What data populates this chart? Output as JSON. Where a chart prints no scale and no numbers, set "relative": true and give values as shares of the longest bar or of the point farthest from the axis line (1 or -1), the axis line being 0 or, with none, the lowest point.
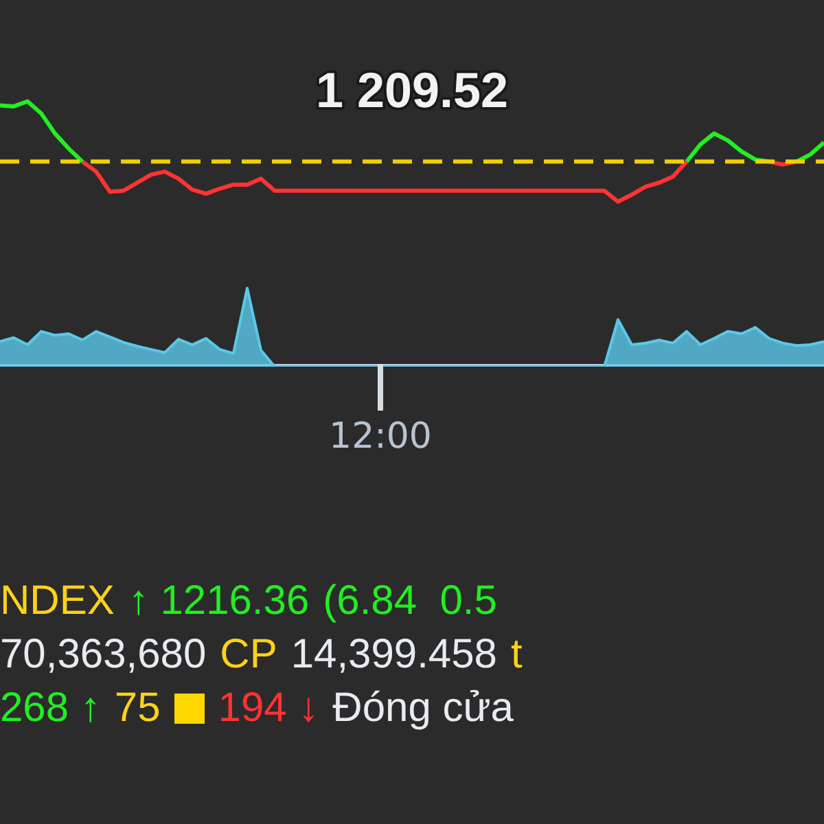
{
  "chart_data": [
    {
      "type": "line",
      "relative": true,
      "tick_labels": false,
      "grid": false,
      "legend": false,
      "marker": "none",
      "categories": [
        null,
        null,
        null,
        null,
        null,
        null,
        null,
        null,
        null,
        null,
        null,
        null,
        null,
        null,
        null,
        null,
        null,
        null,
        null,
        null,
        null,
        null,
        null,
        null,
        null,
        null,
        null,
        null,
        null,
        null,
        null,
        null,
        null,
        null,
        null,
        null,
        null,
        null,
        null,
        null,
        null,
        null,
        null,
        null,
        null,
        null,
        null,
        null,
        null,
        null,
        null,
        null,
        null,
        null,
        null,
        null,
        null,
        null,
        null,
        null,
        null
      ],
      "ref_lines": [
        {
          "axis": "y",
          "value": 0.4,
          "color": "#f0d000",
          "line_style": "dashed"
        }
      ],
      "annotations": [
        "1 209.52"
      ],
      "series": [
        {
          "color": "#22ee22",
          "values": [
            0.96,
            0.95,
            1,
            0.88,
            0.68,
            0.53,
            0.4,
            null,
            null,
            null,
            null,
            null,
            null,
            null,
            null,
            null,
            null,
            null,
            null,
            null,
            null,
            null,
            null,
            null,
            null,
            null,
            null,
            null,
            null,
            null,
            null,
            null,
            null,
            null,
            null,
            null,
            null,
            null,
            null,
            null,
            null,
            null,
            null,
            null,
            null,
            null,
            null,
            null,
            null,
            null,
            null,
            null,
            null,
            null,
            null,
            null,
            null,
            null,
            null,
            null,
            null
          ]
        },
        {
          "color": "#ff3333",
          "values": [
            null,
            null,
            null,
            null,
            null,
            null,
            0.4,
            0.3,
            0.1,
            0.11,
            0.19,
            0.27,
            0.3,
            0.23,
            0.12,
            0.08,
            0.13,
            0.17,
            0.17,
            0.23,
            0.11,
            0.11,
            0.11,
            0.11,
            0.11,
            0.11,
            0.11,
            0.11,
            0.11,
            0.11,
            0.11,
            0.11,
            0.11,
            0.11,
            0.11,
            0.11,
            0.11,
            0.11,
            0.11,
            0.11,
            0.11,
            0.11,
            0.11,
            0.11,
            0.11,
            0,
            0.07,
            0.15,
            0.19,
            0.25,
            0.4,
            null,
            null,
            null,
            null,
            null,
            null,
            null,
            null,
            null,
            null
          ]
        },
        {
          "color": "#22ee22",
          "values": [
            null,
            null,
            null,
            null,
            null,
            null,
            null,
            null,
            null,
            null,
            null,
            null,
            null,
            null,
            null,
            null,
            null,
            null,
            null,
            null,
            null,
            null,
            null,
            null,
            null,
            null,
            null,
            null,
            null,
            null,
            null,
            null,
            null,
            null,
            null,
            null,
            null,
            null,
            null,
            null,
            null,
            null,
            null,
            null,
            null,
            null,
            null,
            null,
            null,
            null,
            0.4,
            0.57,
            0.68,
            0.61,
            0.5,
            0.42,
            0.4,
            null,
            null,
            null,
            null
          ]
        },
        {
          "color": "#ff3333",
          "values": [
            null,
            null,
            null,
            null,
            null,
            null,
            null,
            null,
            null,
            null,
            null,
            null,
            null,
            null,
            null,
            null,
            null,
            null,
            null,
            null,
            null,
            null,
            null,
            null,
            null,
            null,
            null,
            null,
            null,
            null,
            null,
            null,
            null,
            null,
            null,
            null,
            null,
            null,
            null,
            null,
            null,
            null,
            null,
            null,
            null,
            null,
            null,
            null,
            null,
            null,
            null,
            null,
            null,
            null,
            null,
            null,
            0.4,
            0.37,
            0.4,
            null,
            null
          ]
        },
        {
          "color": "#22ee22",
          "values": [
            null,
            null,
            null,
            null,
            null,
            null,
            null,
            null,
            null,
            null,
            null,
            null,
            null,
            null,
            null,
            null,
            null,
            null,
            null,
            null,
            null,
            null,
            null,
            null,
            null,
            null,
            null,
            null,
            null,
            null,
            null,
            null,
            null,
            null,
            null,
            null,
            null,
            null,
            null,
            null,
            null,
            null,
            null,
            null,
            null,
            null,
            null,
            null,
            null,
            null,
            null,
            null,
            null,
            null,
            null,
            null,
            null,
            null,
            0.4,
            0.47,
            0.59
          ]
        }
      ]
    },
    {
      "type": "area",
      "relative": true,
      "tick_labels": false,
      "grid": false,
      "legend": false,
      "categories": [
        null,
        null,
        null,
        null,
        null,
        null,
        null,
        null,
        null,
        null,
        null,
        null,
        null,
        null,
        null,
        null,
        null,
        null,
        null,
        null,
        null,
        null,
        null,
        null,
        null,
        null,
        null,
        null,
        null,
        null,
        null,
        null,
        null,
        null,
        null,
        null,
        null,
        null,
        null,
        null,
        null,
        null,
        null,
        null,
        null,
        null,
        null,
        null,
        null,
        null,
        null,
        null,
        null,
        null,
        null,
        null,
        null,
        null,
        null,
        null,
        null
      ],
      "series": [
        {
          "color": "#5bc8e8",
          "values": [
            0.32,
            0.37,
            0.28,
            0.45,
            0.4,
            0.42,
            0.34,
            0.45,
            0.38,
            0.31,
            0.26,
            0.22,
            0.18,
            0.35,
            0.28,
            0.36,
            0.22,
            0.17,
            1,
            0.21,
            0,
            0,
            0,
            0,
            0,
            0,
            0,
            0,
            0,
            0,
            0,
            0,
            0,
            0,
            0,
            0,
            0,
            0,
            0,
            0,
            0,
            0,
            0,
            0,
            0,
            0.6,
            0.28,
            0.3,
            0.34,
            0.3,
            0.45,
            0.28,
            0.36,
            0.45,
            0.42,
            0.5,
            0.36,
            0.3,
            0.27,
            0.28,
            0.32
          ]
        }
      ],
      "annotations": [
        "12:00",
        "NDEX",
        "↑ 1216.36",
        "(6.84  0.5",
        "70,363,680",
        "CP",
        "14,399.458",
        "t",
        "268 ↑",
        "75",
        "194 ↓",
        "Đóng cửa"
      ]
    }
  ]
}
